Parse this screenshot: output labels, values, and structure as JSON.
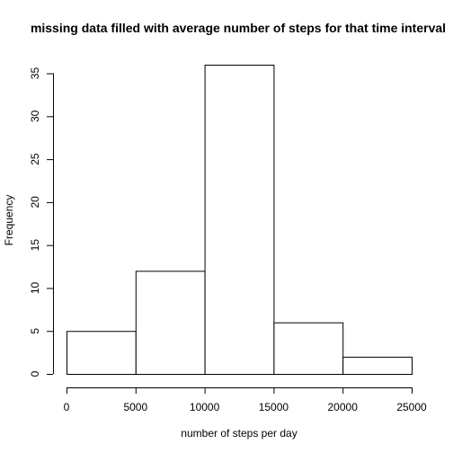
{
  "chart_data": {
    "type": "histogram",
    "title": "missing data filled with average number of steps for that time interval",
    "xlabel": "number of steps per day",
    "ylabel": "Frequency",
    "bins": [
      {
        "from": 0,
        "to": 5000,
        "count": 5
      },
      {
        "from": 5000,
        "to": 10000,
        "count": 12
      },
      {
        "from": 10000,
        "to": 15000,
        "count": 36
      },
      {
        "from": 15000,
        "to": 20000,
        "count": 6
      },
      {
        "from": 20000,
        "to": 25000,
        "count": 2
      }
    ],
    "xticks": [
      0,
      5000,
      10000,
      15000,
      20000,
      25000
    ],
    "yticks": [
      0,
      5,
      10,
      15,
      20,
      25,
      30,
      35
    ],
    "xlim": [
      0,
      25000
    ],
    "ylim": [
      0,
      36
    ],
    "grid": false,
    "bar_fill": "#ffffff",
    "bar_stroke": "#000000"
  }
}
